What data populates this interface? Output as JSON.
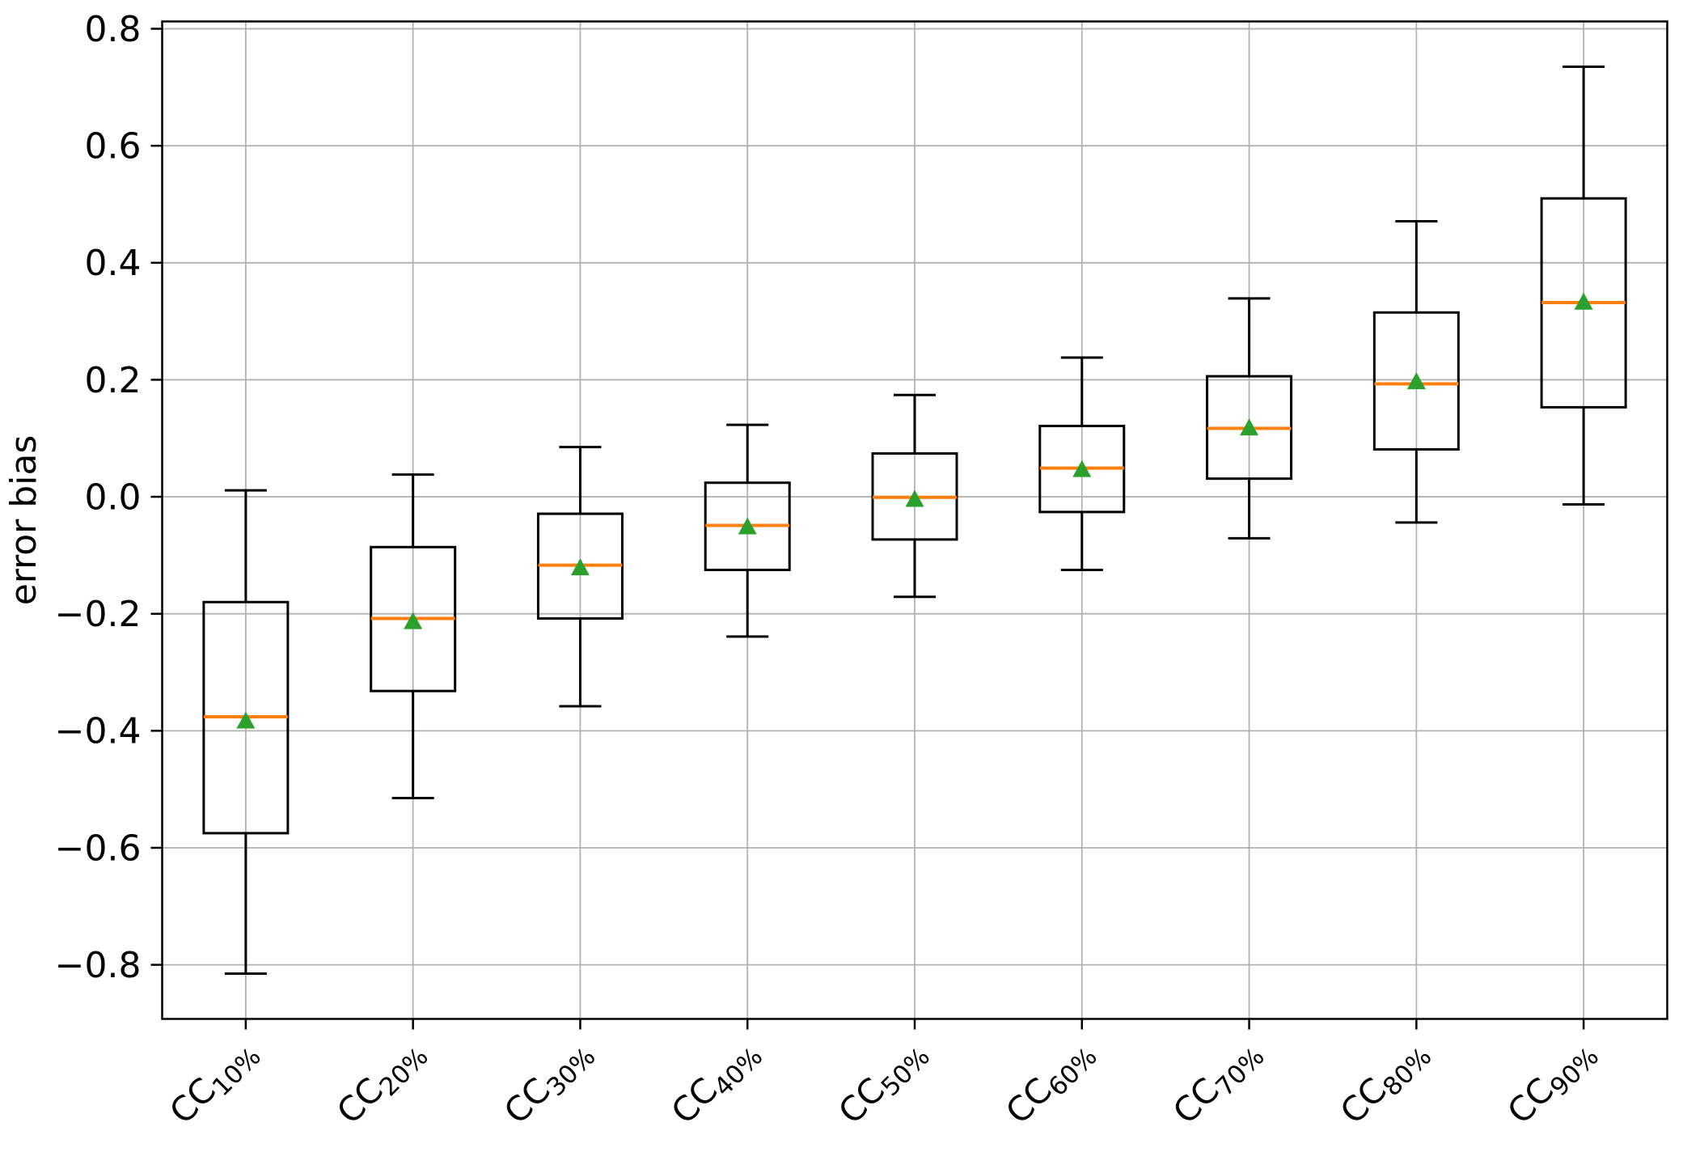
{
  "chart_data": {
    "type": "boxplot",
    "title": "",
    "xlabel": "",
    "ylabel": "error bias",
    "ylim": [
      -0.8925,
      0.8125
    ],
    "grid": true,
    "legend": null,
    "colors": {
      "box_stroke": "#000000",
      "median": "#ff7f0e",
      "mean_marker": "#2ca02c",
      "gridline": "#b2b2b2",
      "spine": "#000000",
      "background": "#ffffff"
    },
    "y_ticks": [
      {
        "value": 0.8,
        "label": "0.8"
      },
      {
        "value": 0.6,
        "label": "0.6"
      },
      {
        "value": 0.4,
        "label": "0.4"
      },
      {
        "value": 0.2,
        "label": "0.2"
      },
      {
        "value": 0.0,
        "label": "0.0"
      },
      {
        "value": -0.2,
        "label": "−0.2"
      },
      {
        "value": -0.4,
        "label": "−0.4"
      },
      {
        "value": -0.6,
        "label": "−0.6"
      },
      {
        "value": -0.8,
        "label": "−0.8"
      }
    ],
    "categories": [
      {
        "base": "CC",
        "sub": "10%"
      },
      {
        "base": "CC",
        "sub": "20%"
      },
      {
        "base": "CC",
        "sub": "30%"
      },
      {
        "base": "CC",
        "sub": "40%"
      },
      {
        "base": "CC",
        "sub": "50%"
      },
      {
        "base": "CC",
        "sub": "60%"
      },
      {
        "base": "CC",
        "sub": "70%"
      },
      {
        "base": "CC",
        "sub": "80%"
      },
      {
        "base": "CC",
        "sub": "90%"
      }
    ],
    "series": [
      {
        "label": "CC10%",
        "whislo": -0.815,
        "q1": -0.575,
        "med": -0.376,
        "q3": -0.18,
        "whishi": 0.011,
        "mean": -0.383
      },
      {
        "label": "CC20%",
        "whislo": -0.515,
        "q1": -0.332,
        "med": -0.208,
        "q3": -0.086,
        "whishi": 0.038,
        "mean": -0.213
      },
      {
        "label": "CC30%",
        "whislo": -0.358,
        "q1": -0.208,
        "med": -0.117,
        "q3": -0.029,
        "whishi": 0.085,
        "mean": -0.121
      },
      {
        "label": "CC40%",
        "whislo": -0.239,
        "q1": -0.125,
        "med": -0.049,
        "q3": 0.024,
        "whishi": 0.123,
        "mean": -0.051
      },
      {
        "label": "CC50%",
        "whislo": -0.171,
        "q1": -0.073,
        "med": -0.001,
        "q3": 0.074,
        "whishi": 0.174,
        "mean": -0.004
      },
      {
        "label": "CC60%",
        "whislo": -0.125,
        "q1": -0.026,
        "med": 0.049,
        "q3": 0.121,
        "whishi": 0.238,
        "mean": 0.047
      },
      {
        "label": "CC70%",
        "whislo": -0.071,
        "q1": 0.031,
        "med": 0.117,
        "q3": 0.206,
        "whishi": 0.339,
        "mean": 0.118
      },
      {
        "label": "CC80%",
        "whislo": -0.044,
        "q1": 0.081,
        "med": 0.193,
        "q3": 0.315,
        "whishi": 0.471,
        "mean": 0.197
      },
      {
        "label": "CC90%",
        "whislo": -0.013,
        "q1": 0.153,
        "med": 0.332,
        "q3": 0.51,
        "whishi": 0.735,
        "mean": 0.333
      }
    ]
  }
}
